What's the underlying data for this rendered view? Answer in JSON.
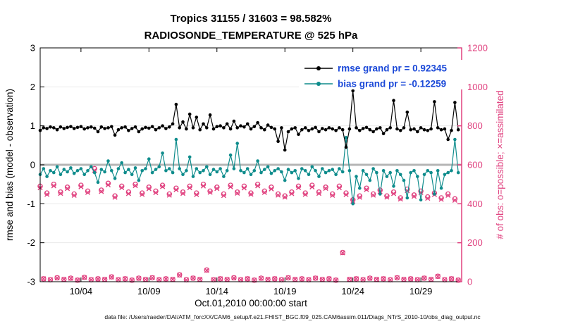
{
  "title": {
    "line1": "Tropics 31155 / 31603 = 98.582%",
    "line2": "RADIOSONDE_TEMPERATURE @ 525 hPa"
  },
  "stats": {
    "assimilated": 31155,
    "possible": 31603,
    "percent": 98.582
  },
  "axis": {
    "y_left_label": "rmse and bias (model - observation)",
    "y_right_label": "# of obs: o=possible; ×=assimilated",
    "x_label": "Oct.01,2010 00:00:00 start"
  },
  "legend": [
    {
      "label": "rmse grand pr = 0.92345",
      "series": "rmse"
    },
    {
      "label": "bias grand pr = -0.12259",
      "series": "bias"
    }
  ],
  "caption": "data file: /Users/raeder/DAI/ATM_forcXX/CAM6_setup/f.e21.FHIST_BGC.f09_025.CAM6assim.011/Diags_NTrS_2010-10/obs_diag_output.nc",
  "colors": {
    "rmse": "#000000",
    "bias": "#0e8c8c",
    "obs": "#e0417f",
    "legend_text": "#1b49d8",
    "zero_line": "#b5b5b5",
    "grid": "#e9e9e9",
    "axis": "#000000"
  },
  "chart_data": {
    "type": "line",
    "title": "Tropics 31155 / 31603 = 98.582% | RADIOSONDE_TEMPERATURE @ 525 hPa",
    "x_axis": {
      "label": "Oct.01,2010 00:00:00 start",
      "tick_days": [
        4,
        9,
        14,
        19,
        24,
        29
      ],
      "tick_labels": [
        "10/04",
        "10/09",
        "10/14",
        "10/19",
        "10/24",
        "10/29"
      ],
      "range_days": [
        1,
        32
      ]
    },
    "y_left": {
      "label": "rmse and bias (model - observation)",
      "range": [
        -3,
        3
      ],
      "ticks": [
        -3,
        -2,
        -1,
        0,
        1,
        2,
        3
      ]
    },
    "y_right": {
      "label": "# of obs: o=possible; ×=assimilated",
      "range": [
        0,
        1200
      ],
      "ticks": [
        0,
        200,
        400,
        600,
        800,
        1000,
        1200
      ]
    },
    "x_time": {
      "start_day": 1,
      "step_days": 0.25,
      "n": 124
    },
    "series": [
      {
        "name": "rmse",
        "axis": "left",
        "grand_value": 0.92345,
        "values": [
          0.88,
          0.95,
          0.93,
          0.97,
          0.95,
          0.9,
          0.97,
          0.93,
          0.96,
          0.98,
          0.93,
          0.96,
          0.98,
          0.92,
          0.95,
          0.97,
          0.94,
          0.85,
          0.97,
          0.93,
          0.95,
          0.98,
          0.76,
          0.9,
          0.95,
          0.97,
          0.88,
          0.93,
          0.97,
          0.85,
          0.92,
          0.96,
          0.94,
          0.98,
          0.9,
          0.95,
          1.0,
          0.93,
          0.97,
          1.05,
          1.55,
          0.95,
          1.1,
          0.92,
          1.3,
          0.95,
          1.22,
          0.9,
          1.05,
          0.95,
          1.28,
          0.92,
          0.98,
          1.0,
          0.95,
          1.05,
          0.92,
          1.12,
          0.95,
          1.0,
          0.97,
          1.05,
          0.92,
          0.98,
          1.08,
          0.95,
          0.9,
          1.02,
          0.96,
          0.92,
          0.6,
          0.95,
          0.38,
          0.85,
          0.92,
          0.95,
          0.78,
          0.9,
          0.95,
          0.88,
          0.92,
          0.96,
          0.85,
          0.93,
          0.9,
          0.95,
          0.92,
          0.88,
          0.95,
          0.9,
          0.45,
          0.92,
          1.9,
          0.95,
          0.88,
          0.93,
          0.96,
          0.9,
          0.85,
          0.92,
          0.95,
          0.8,
          0.9,
          0.95,
          1.65,
          0.92,
          0.88,
          0.95,
          1.35,
          0.9,
          0.92,
          0.85,
          0.95,
          0.9,
          0.88,
          0.92,
          1.62,
          0.95,
          0.9,
          0.92,
          0.65,
          0.88,
          1.6,
          0.9
        ]
      },
      {
        "name": "bias",
        "axis": "left",
        "grand_value": -0.12259,
        "values": [
          -0.25,
          -0.1,
          -0.3,
          -0.15,
          -0.2,
          -0.05,
          -0.25,
          -0.12,
          -0.18,
          -0.08,
          -0.22,
          -0.15,
          -0.1,
          -0.25,
          -0.15,
          -0.05,
          -0.2,
          -0.45,
          -0.12,
          -0.18,
          0.1,
          -0.15,
          -0.35,
          -0.1,
          0.05,
          -0.2,
          -0.12,
          -0.25,
          -0.08,
          -0.4,
          -0.15,
          -0.1,
          0.15,
          -0.2,
          -0.12,
          -0.05,
          0.3,
          -0.15,
          -0.1,
          -0.2,
          0.65,
          -0.1,
          -0.25,
          -0.15,
          0.2,
          -0.3,
          -0.1,
          -0.2,
          -0.15,
          -0.05,
          -0.25,
          -0.12,
          -0.18,
          -0.1,
          -0.3,
          -0.15,
          0.25,
          -0.1,
          0.55,
          -0.15,
          -0.2,
          -0.1,
          -0.25,
          -0.15,
          0.1,
          -0.2,
          -0.12,
          -0.05,
          -0.22,
          -0.15,
          -0.1,
          -0.18,
          -0.4,
          -0.12,
          -0.2,
          -0.15,
          -0.35,
          -0.1,
          -0.15,
          -0.25,
          -0.05,
          -0.15,
          -0.3,
          -0.1,
          -0.2,
          -0.15,
          -0.12,
          -0.25,
          -0.1,
          -0.18,
          0.7,
          -0.15,
          -1.0,
          -0.3,
          -0.6,
          -0.15,
          -0.25,
          -0.4,
          -0.1,
          -0.2,
          -0.75,
          -0.15,
          -0.3,
          -0.2,
          -0.55,
          -0.15,
          -0.25,
          -0.4,
          -0.85,
          -0.2,
          -0.15,
          -0.3,
          -0.9,
          -0.25,
          -0.15,
          -0.2,
          -0.75,
          -0.15,
          -0.6,
          -0.25,
          -0.2,
          -0.15,
          0.65,
          -0.2
        ]
      },
      {
        "name": "obs_possible",
        "axis": "right",
        "marker": "o",
        "values": [
          490,
          15,
          455,
          10,
          500,
          20,
          460,
          12,
          485,
          18,
          450,
          8,
          495,
          22,
          465,
          10,
          580,
          15,
          470,
          12,
          505,
          25,
          440,
          10,
          490,
          15,
          460,
          8,
          500,
          18,
          455,
          12,
          485,
          20,
          465,
          10,
          495,
          15,
          450,
          12,
          480,
          35,
          460,
          10,
          490,
          18,
          455,
          12,
          500,
          60,
          465,
          10,
          485,
          15,
          450,
          12,
          495,
          20,
          460,
          10,
          490,
          15,
          455,
          8,
          500,
          18,
          465,
          12,
          485,
          15,
          450,
          10,
          440,
          20,
          460,
          12,
          490,
          15,
          455,
          10,
          495,
          18,
          460,
          12,
          485,
          15,
          450,
          8,
          490,
          150,
          455,
          12,
          420,
          15,
          440,
          10,
          480,
          18,
          450,
          12,
          470,
          15,
          440,
          10,
          460,
          20,
          430,
          12,
          475,
          15,
          445,
          10,
          465,
          18,
          435,
          12,
          455,
          28,
          430,
          10,
          450,
          15,
          425,
          8
        ]
      },
      {
        "name": "obs_assimilated",
        "axis": "right",
        "marker": "x",
        "values": [
          482,
          15,
          448,
          10,
          492,
          19,
          453,
          12,
          478,
          17,
          443,
          8,
          487,
          21,
          458,
          10,
          571,
          14,
          463,
          12,
          497,
          24,
          433,
          10,
          483,
          15,
          452,
          8,
          493,
          17,
          448,
          11,
          477,
          20,
          457,
          10,
          488,
          14,
          444,
          12,
          472,
          34,
          453,
          9,
          482,
          18,
          447,
          12,
          491,
          58,
          459,
          10,
          478,
          15,
          442,
          11,
          487,
          19,
          454,
          10,
          481,
          15,
          449,
          8,
          492,
          17,
          458,
          12,
          476,
          15,
          444,
          9,
          434,
          20,
          452,
          12,
          483,
          14,
          448,
          10,
          486,
          18,
          453,
          11,
          479,
          15,
          443,
          8,
          482,
          148,
          447,
          12,
          413,
          15,
          433,
          10,
          473,
          17,
          444,
          12,
          462,
          15,
          434,
          9,
          452,
          20,
          424,
          12,
          467,
          14,
          438,
          10,
          458,
          18,
          428,
          12,
          447,
          27,
          423,
          10,
          443,
          15,
          418,
          8
        ]
      }
    ]
  }
}
